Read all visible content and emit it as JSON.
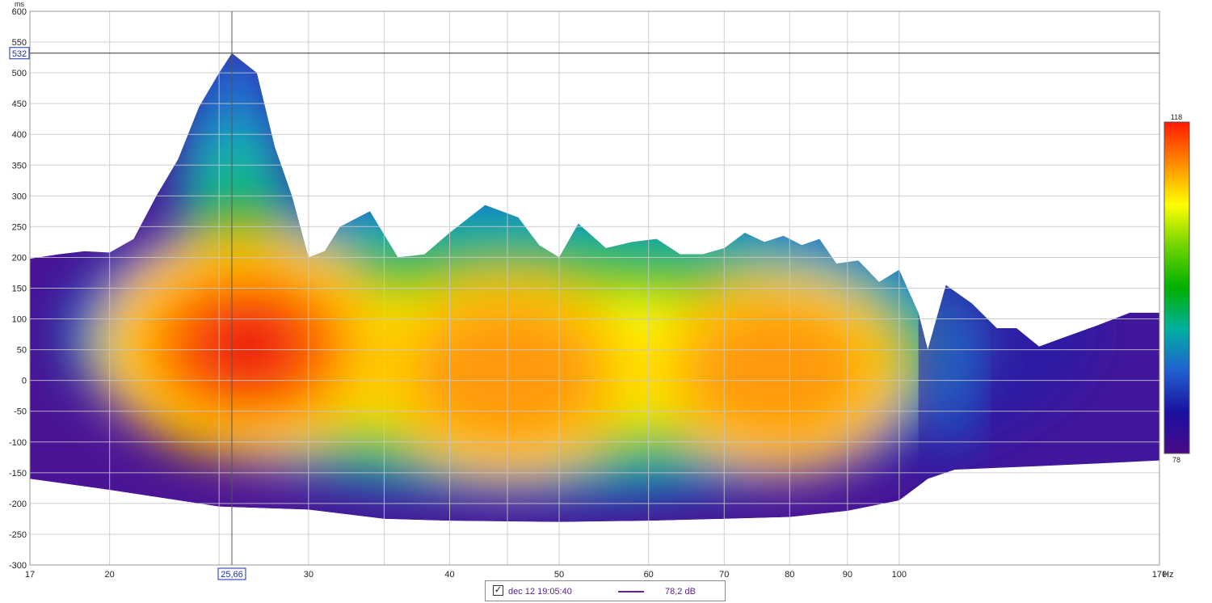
{
  "chart_data": {
    "type": "heatmap",
    "title": "",
    "xlabel": "",
    "ylabel": "",
    "x_unit": "Hz",
    "y_unit": "ms",
    "x_scale": "log",
    "xlim": [
      17,
      170
    ],
    "ylim": [
      -300,
      600
    ],
    "x_ticks": [
      17,
      20,
      30,
      40,
      50,
      60,
      70,
      80,
      90,
      100,
      170
    ],
    "x_tick_labels": [
      "17",
      "20",
      "30",
      "40",
      "50",
      "60",
      "70",
      "80",
      "90",
      "100",
      "170"
    ],
    "x_minor_grid": [
      25,
      35,
      45
    ],
    "y_ticks": [
      600,
      550,
      500,
      450,
      400,
      350,
      300,
      250,
      200,
      150,
      100,
      50,
      0,
      -50,
      -100,
      -150,
      -200,
      -250,
      -300
    ],
    "y_tick_labels": [
      "600",
      "550",
      "500",
      "450",
      "400",
      "350",
      "300",
      "250",
      "200",
      "150",
      "100",
      "50",
      "0",
      "-50",
      "-100",
      "-150",
      "-200",
      "-250",
      "-300"
    ],
    "colorbar": {
      "min": 78,
      "max": 118,
      "min_label": "78",
      "max_label": "118",
      "colors": [
        "#ff1a00",
        "#ff8c00",
        "#ffff00",
        "#6fd300",
        "#00b000",
        "#00b0a0",
        "#2060d0",
        "#1a10a0",
        "#4a0a88"
      ]
    },
    "cursor": {
      "x": 25.66,
      "y": 532,
      "x_label": "25,66",
      "y_label": "532"
    },
    "grid": true,
    "top_contour": [
      [
        17,
        198
      ],
      [
        18,
        205
      ],
      [
        19,
        210
      ],
      [
        20,
        208
      ],
      [
        21,
        230
      ],
      [
        22,
        300
      ],
      [
        23,
        360
      ],
      [
        24,
        445
      ],
      [
        25,
        500
      ],
      [
        25.66,
        532
      ],
      [
        27,
        500
      ],
      [
        28,
        380
      ],
      [
        29,
        300
      ],
      [
        30,
        200
      ],
      [
        31,
        210
      ],
      [
        32,
        250
      ],
      [
        34,
        275
      ],
      [
        36,
        200
      ],
      [
        38,
        205
      ],
      [
        40,
        240
      ],
      [
        43,
        285
      ],
      [
        46,
        265
      ],
      [
        48,
        220
      ],
      [
        50,
        200
      ],
      [
        52,
        255
      ],
      [
        55,
        215
      ],
      [
        58,
        225
      ],
      [
        61,
        230
      ],
      [
        64,
        205
      ],
      [
        67,
        205
      ],
      [
        70,
        215
      ],
      [
        73,
        240
      ],
      [
        76,
        225
      ],
      [
        79,
        235
      ],
      [
        82,
        220
      ],
      [
        85,
        230
      ],
      [
        88,
        190
      ],
      [
        92,
        195
      ],
      [
        96,
        160
      ],
      [
        100,
        180
      ],
      [
        104,
        110
      ],
      [
        106,
        50
      ],
      [
        110,
        155
      ],
      [
        116,
        125
      ],
      [
        122,
        85
      ],
      [
        127,
        85
      ],
      [
        133,
        55
      ],
      [
        140,
        70
      ],
      [
        150,
        90
      ],
      [
        160,
        110
      ],
      [
        170,
        110
      ]
    ],
    "bottom_contour": [
      [
        17,
        -160
      ],
      [
        20,
        -178
      ],
      [
        25,
        -205
      ],
      [
        30,
        -210
      ],
      [
        35,
        -225
      ],
      [
        40,
        -228
      ],
      [
        50,
        -230
      ],
      [
        60,
        -228
      ],
      [
        70,
        -225
      ],
      [
        80,
        -222
      ],
      [
        90,
        -212
      ],
      [
        100,
        -195
      ],
      [
        106,
        -160
      ],
      [
        112,
        -145
      ],
      [
        130,
        -140
      ],
      [
        150,
        -135
      ],
      [
        170,
        -130
      ]
    ],
    "hotspots": [
      {
        "x": 26.5,
        "y": 55,
        "level": 116
      },
      {
        "x": 45,
        "y": 10,
        "level": 111
      },
      {
        "x": 78,
        "y": 15,
        "level": 109
      }
    ],
    "legend": {
      "checked": true,
      "name": "dec 12 19:05:40",
      "value": "78,2 dB",
      "color": "#6a1fa0"
    }
  }
}
